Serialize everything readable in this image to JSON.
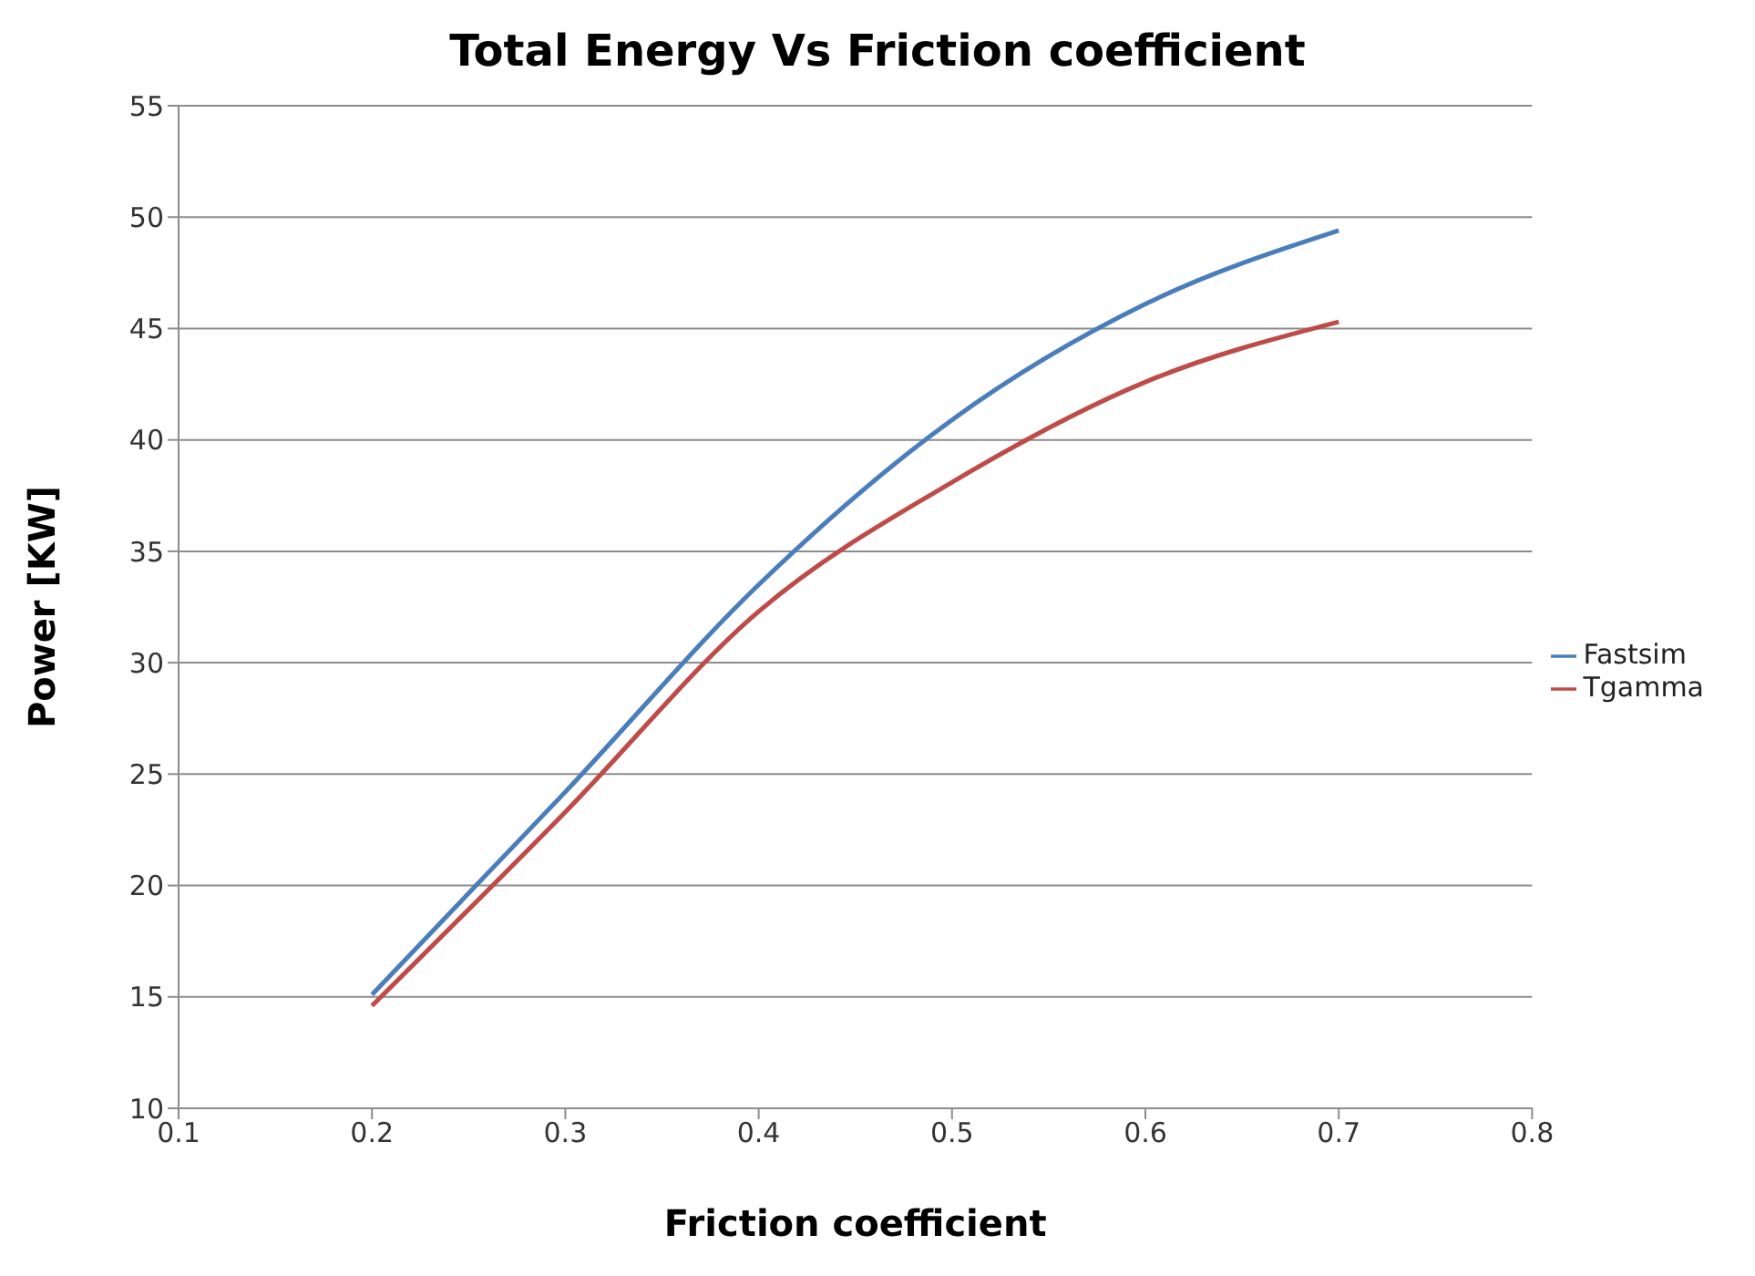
{
  "chart_data": {
    "type": "line",
    "title": "Total Energy Vs Friction coefficient",
    "xlabel": "Friction coefficient",
    "ylabel": "Power [KW]",
    "x": [
      0.2,
      0.3,
      0.4,
      0.5,
      0.6,
      0.7
    ],
    "series": [
      {
        "name": "Fastsim",
        "color": "#4a7ebb",
        "values": [
          15.1,
          24.2,
          33.5,
          40.9,
          46.1,
          49.4
        ]
      },
      {
        "name": "Tgamma",
        "color": "#be4b48",
        "values": [
          14.6,
          23.3,
          32.3,
          38.1,
          42.6,
          45.3
        ]
      }
    ],
    "xlim": [
      0.1,
      0.8
    ],
    "xticks": [
      0.1,
      0.2,
      0.3,
      0.4,
      0.5,
      0.6,
      0.7,
      0.8
    ],
    "ylim": [
      10,
      55
    ],
    "yticks": [
      10,
      15,
      20,
      25,
      30,
      35,
      40,
      45,
      50,
      55
    ],
    "grid": "y",
    "legend": "right",
    "marker": "none",
    "line_style": "solid"
  }
}
